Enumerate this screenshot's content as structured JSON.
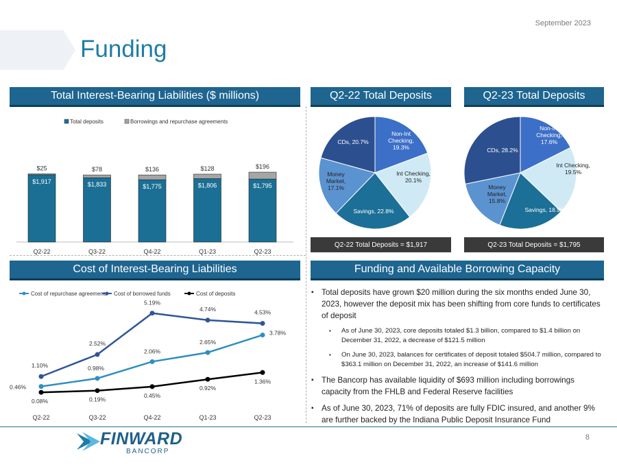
{
  "header": {
    "date": "September 2023",
    "title": "Funding"
  },
  "panels": {
    "liabilities": "Total Interest-Bearing Liabilities ($ millions)",
    "q2_22": "Q2-22 Total Deposits",
    "q2_23": "Q2-23 Total Deposits",
    "cost": "Cost of Interest-Bearing Liabilities",
    "capacity": "Funding and Available Borrowing Capacity"
  },
  "pie_footers": {
    "q2_22": "Q2-22 Total Deposits = $1,917",
    "q2_23": "Q2-23 Total Deposits = $1,795"
  },
  "bullets": {
    "b1": "Total deposits have grown $20 million during the six months ended June 30, 2023, however the deposit mix has been shifting from core funds to certificates of deposit",
    "b1a": "As of June 30, 2023, core deposits totaled $1.3 billion, compared to $1.4 billion on December 31, 2022, a decrease of $121.5 million",
    "b1b": "On June 30, 2023, balances for certificates of deposit totaled $504.7 million, compared to $363.1 million on December 31, 2022, an increase of $141.6 million",
    "b2": "The Bancorp has available liquidity of $693 million including borrowings capacity from the FHLB and Federal Reserve facilities",
    "b3": "As of June 30, 2023, 71% of deposits are fully FDIC insured, and another 9% are further backed by the Indiana Public Deposit Insurance Fund"
  },
  "footer": {
    "logo_text": "FINWARD",
    "logo_sub": "BANCORP",
    "page": "8"
  },
  "colors": {
    "navy": "#1e6590",
    "deposits": "#1b6f95",
    "borrowings": "#a6a6a6",
    "repo": "#2f8fbf",
    "borrowed": "#2f5597",
    "cost_deposits": "#000000"
  },
  "chart_data": [
    {
      "type": "bar",
      "stacked": true,
      "title": "Total Interest-Bearing Liabilities ($ millions)",
      "categories": [
        "Q2-22",
        "Q3-22",
        "Q4-22",
        "Q1-23",
        "Q2-23"
      ],
      "series": [
        {
          "name": "Total deposits",
          "values": [
            1917,
            1833,
            1775,
            1806,
            1795
          ],
          "labels": [
            "$1,917",
            "$1,833",
            "$1,775",
            "$1,806",
            "$1,795"
          ]
        },
        {
          "name": "Borrowings and repurchase agreements",
          "values": [
            25,
            78,
            136,
            128,
            196
          ],
          "labels": [
            "$25",
            "$78",
            "$136",
            "$128",
            "$196"
          ]
        }
      ],
      "legend": "top-center"
    },
    {
      "type": "pie",
      "title": "Q2-22 Total Deposits",
      "slices": [
        {
          "name": "Non-Int Checking",
          "value": 19.3,
          "label": "Non-Int Checking, 19.3%"
        },
        {
          "name": "Int Checking",
          "value": 20.1,
          "label": "Int Checking, 20.1%"
        },
        {
          "name": "Savings",
          "value": 22.8,
          "label": "Savings, 22.8%"
        },
        {
          "name": "Money Market",
          "value": 17.1,
          "label": "Money Market, 17.1%"
        },
        {
          "name": "CDs",
          "value": 20.7,
          "label": "CDs, 20.7%"
        }
      ]
    },
    {
      "type": "pie",
      "title": "Q2-23 Total Deposits",
      "slices": [
        {
          "name": "Non-Int Checking",
          "value": 17.6,
          "label": "Non-Int Checking, 17.6%"
        },
        {
          "name": "Int Checking",
          "value": 19.5,
          "label": "Int Checking, 19.5%"
        },
        {
          "name": "Savings",
          "value": 18.9,
          "label": "Savings, 18.9%"
        },
        {
          "name": "Money Market",
          "value": 15.8,
          "label": "Money Market, 15.8%"
        },
        {
          "name": "CDs",
          "value": 28.2,
          "label": "CDs, 28.2%"
        }
      ]
    },
    {
      "type": "line",
      "title": "Cost of Interest-Bearing Liabilities",
      "categories": [
        "Q2-22",
        "Q3-22",
        "Q4-22",
        "Q1-23",
        "Q2-23"
      ],
      "series": [
        {
          "name": "Cost of repurchase agreements",
          "values": [
            0.46,
            0.98,
            2.06,
            2.65,
            3.78
          ],
          "labels": [
            "0.46%",
            "0.98%",
            "2.06%",
            "2.65%",
            "3.78%"
          ]
        },
        {
          "name": "Cost of borrowed funds",
          "values": [
            1.1,
            2.52,
            5.19,
            4.74,
            4.53
          ],
          "labels": [
            "1.10%",
            "2.52%",
            "5.19%",
            "4.74%",
            "4.53%"
          ]
        },
        {
          "name": "Cost of deposits",
          "values": [
            0.08,
            0.19,
            0.45,
            0.92,
            1.36
          ],
          "labels": [
            "0.08%",
            "0.19%",
            "0.45%",
            "0.92%",
            "1.36%"
          ]
        }
      ],
      "ylim": [
        0,
        5.5
      ],
      "legend": "top"
    }
  ]
}
